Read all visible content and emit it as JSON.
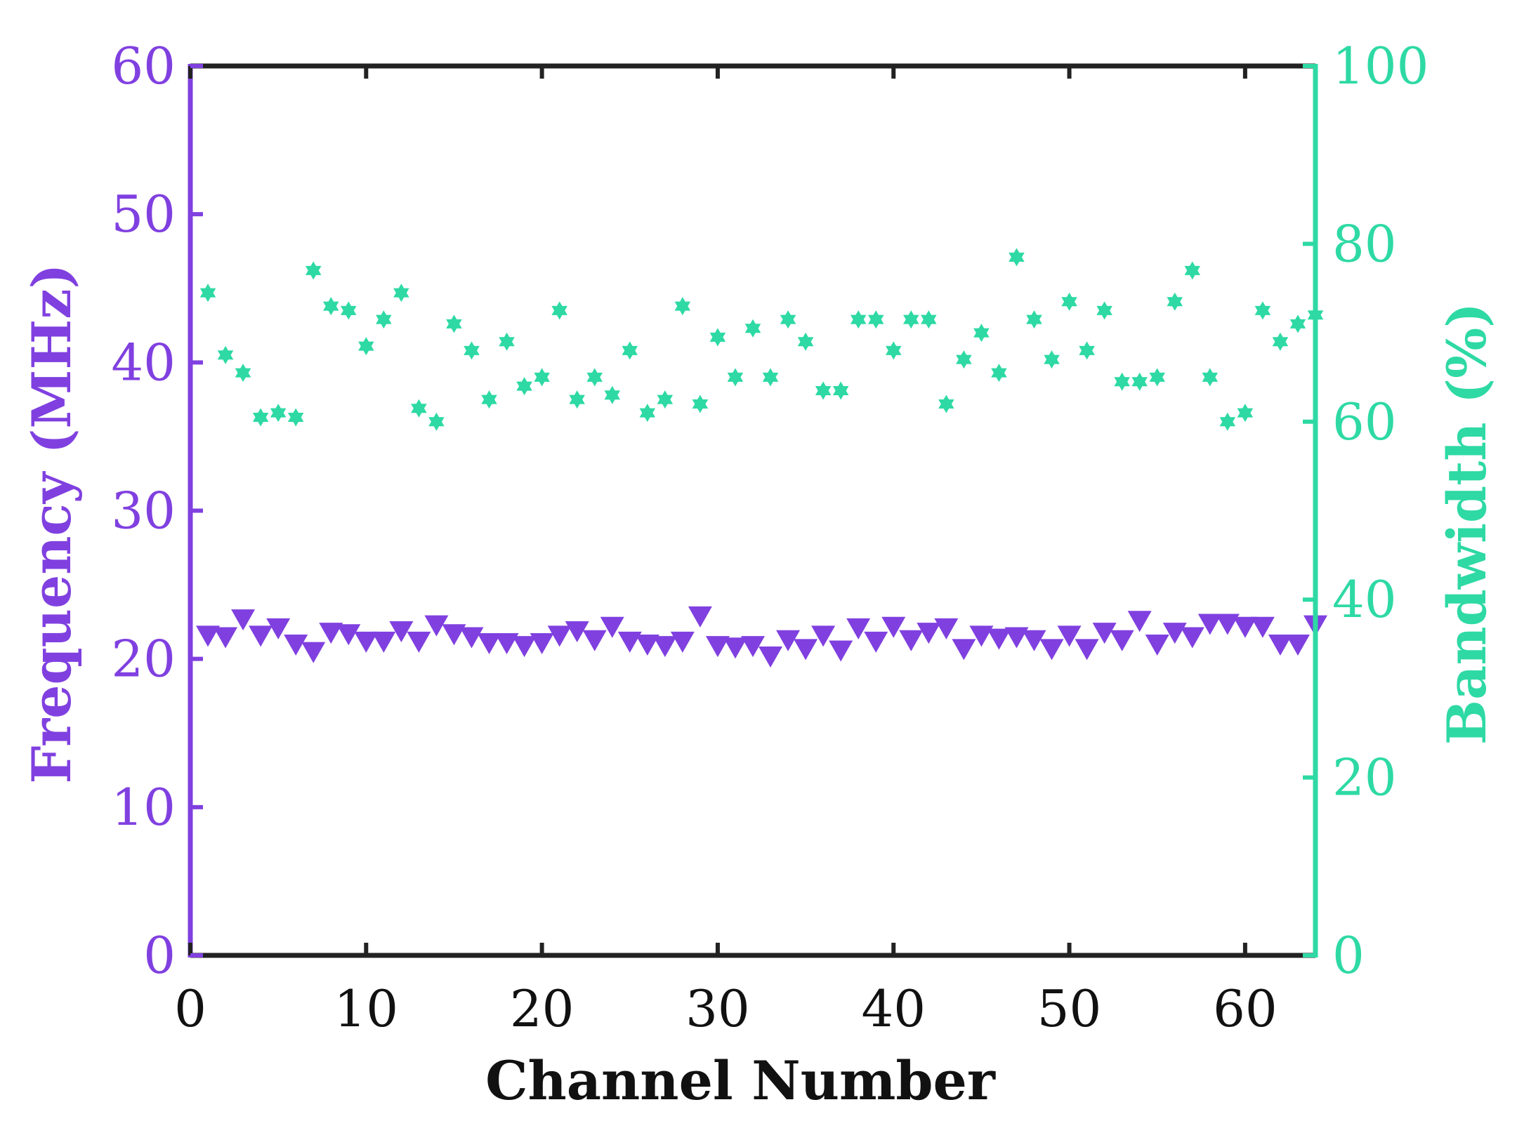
{
  "colors": {
    "left_axis": "#8040e0",
    "right_axis": "#2ed9a4",
    "frame": "#222222",
    "background": "#ffffff"
  },
  "chart_data": {
    "type": "scatter",
    "title": "",
    "xlabel": "Channel Number",
    "ylabel_left": "Frequency (MHz)",
    "ylabel_right": "Bandwidth (%)",
    "xlim": [
      0,
      64
    ],
    "ylim_left": [
      0,
      60
    ],
    "ylim_right": [
      0,
      100
    ],
    "x_ticks": [
      "0",
      "10",
      "20",
      "30",
      "40",
      "50",
      "60"
    ],
    "y_left_ticks": [
      "0",
      "10",
      "20",
      "30",
      "40",
      "50",
      "60"
    ],
    "y_right_ticks": [
      "0",
      "20",
      "40",
      "60",
      "80",
      "100"
    ],
    "grid": false,
    "legend": "none",
    "series": [
      {
        "axis": "left",
        "marker": "triangle-down",
        "x": [
          1,
          2,
          3,
          4,
          5,
          6,
          7,
          8,
          9,
          10,
          11,
          12,
          13,
          14,
          15,
          16,
          17,
          18,
          19,
          20,
          21,
          22,
          23,
          24,
          25,
          26,
          27,
          28,
          29,
          30,
          31,
          32,
          33,
          34,
          35,
          36,
          37,
          38,
          39,
          40,
          41,
          42,
          43,
          44,
          45,
          46,
          47,
          48,
          49,
          50,
          51,
          52,
          53,
          54,
          55,
          56,
          57,
          58,
          59,
          60,
          61,
          62,
          63,
          64
        ],
        "values": [
          21.6,
          21.5,
          22.7,
          21.6,
          22.1,
          21.0,
          20.5,
          21.8,
          21.7,
          21.2,
          21.2,
          21.9,
          21.2,
          22.3,
          21.7,
          21.5,
          21.1,
          21.1,
          20.9,
          21.1,
          21.6,
          21.9,
          21.3,
          22.2,
          21.2,
          21.0,
          20.9,
          21.2,
          22.9,
          20.9,
          20.8,
          20.9,
          20.2,
          21.3,
          20.7,
          21.6,
          20.6,
          22.1,
          21.2,
          22.2,
          21.3,
          21.8,
          22.1,
          20.7,
          21.6,
          21.4,
          21.5,
          21.3,
          20.7,
          21.6,
          20.7,
          21.8,
          21.3,
          22.6,
          21.0,
          21.8,
          21.5,
          22.4,
          22.4,
          22.2,
          22.2,
          21.0,
          21.0,
          22.3
        ]
      },
      {
        "axis": "right",
        "marker": "hexagram",
        "x": [
          1,
          2,
          3,
          4,
          5,
          6,
          7,
          8,
          9,
          10,
          11,
          12,
          13,
          14,
          15,
          16,
          17,
          18,
          19,
          20,
          21,
          22,
          23,
          24,
          25,
          26,
          27,
          28,
          29,
          30,
          31,
          32,
          33,
          34,
          35,
          36,
          37,
          38,
          39,
          40,
          41,
          42,
          43,
          44,
          45,
          46,
          47,
          48,
          49,
          50,
          51,
          52,
          53,
          54,
          55,
          56,
          57,
          58,
          59,
          60,
          61,
          62,
          63,
          64
        ],
        "values": [
          74.5,
          67.5,
          65.5,
          60.5,
          61.0,
          60.5,
          77.0,
          73.0,
          72.5,
          68.5,
          71.5,
          74.5,
          61.5,
          60.0,
          71.0,
          68.0,
          62.5,
          69.0,
          64.0,
          65.0,
          72.5,
          62.5,
          65.0,
          63.0,
          68.0,
          61.0,
          62.5,
          73.0,
          62.0,
          69.5,
          65.0,
          70.5,
          65.0,
          71.5,
          69.0,
          63.5,
          63.5,
          71.5,
          71.5,
          68.0,
          71.5,
          71.5,
          62.0,
          67.0,
          70.0,
          65.5,
          78.5,
          71.5,
          67.0,
          73.5,
          68.0,
          72.5,
          64.5,
          64.5,
          65.0,
          73.5,
          77.0,
          65.0,
          60.0,
          61.0,
          72.5,
          69.0,
          71.0,
          72.0
        ]
      }
    ]
  }
}
